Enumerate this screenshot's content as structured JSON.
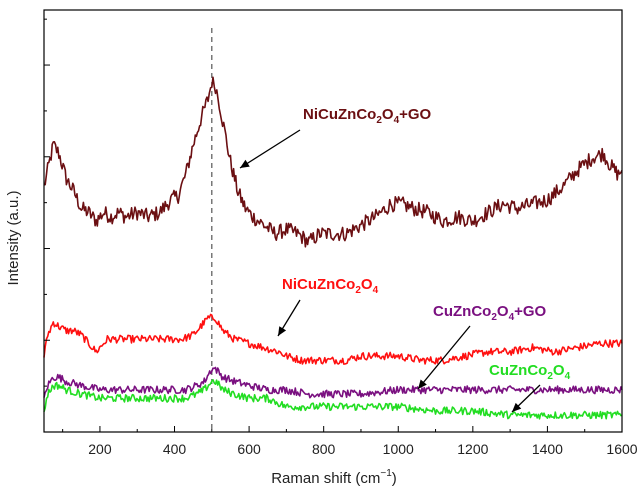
{
  "chart_data": {
    "type": "line",
    "xlabel": "Raman shift (cm",
    "xlabel_sup": "−1",
    "xlabel_end": ")",
    "ylabel": "Intensity (a.u.)",
    "xlim": [
      50,
      1600
    ],
    "ylim": [
      0,
      100
    ],
    "x_ticks": [
      200,
      400,
      600,
      800,
      1000,
      1200,
      1400,
      1600
    ],
    "reference_line_x": 500,
    "series": [
      {
        "name": "NiCuZnCo2O4+GO",
        "label_parts": [
          "NiCuZnCo",
          "2",
          "O",
          "4",
          "+GO"
        ],
        "color": "#6b0f12",
        "x": [
          50,
          60,
          75,
          90,
          110,
          130,
          150,
          170,
          190,
          210,
          230,
          250,
          270,
          300,
          330,
          360,
          390,
          410,
          430,
          450,
          470,
          490,
          500,
          510,
          520,
          535,
          550,
          570,
          590,
          610,
          640,
          670,
          700,
          730,
          760,
          790,
          820,
          860,
          900,
          940,
          980,
          1010,
          1040,
          1080,
          1120,
          1160,
          1200,
          1240,
          1280,
          1320,
          1360,
          1400,
          1440,
          1480,
          1520,
          1550,
          1570,
          1590,
          1600
        ],
        "y": [
          58,
          62,
          68,
          66,
          60,
          57,
          53,
          52,
          50,
          52,
          51,
          52,
          51,
          52,
          51,
          52,
          55,
          56,
          61,
          68,
          74,
          79,
          83,
          82,
          78,
          71,
          64,
          57,
          53,
          51,
          49,
          47,
          48,
          47,
          45,
          47,
          47,
          47,
          49,
          51,
          54,
          54,
          53,
          52,
          50,
          51,
          50,
          52,
          54,
          53,
          54,
          55,
          58,
          62,
          65,
          66,
          63,
          61,
          62
        ]
      },
      {
        "name": "NiCuZnCo2O4",
        "label_parts": [
          "NiCuZnCo",
          "2",
          "O",
          "4",
          ""
        ],
        "color": "#ff1010",
        "x": [
          50,
          60,
          75,
          90,
          110,
          130,
          150,
          170,
          190,
          220,
          260,
          300,
          340,
          380,
          420,
          450,
          470,
          490,
          500,
          510,
          530,
          560,
          600,
          640,
          680,
          700,
          740,
          800,
          860,
          900,
          960,
          1000,
          1060,
          1120,
          1180,
          1240,
          1300,
          1360,
          1420,
          1480,
          1540,
          1580,
          1600
        ],
        "y": [
          18,
          23,
          26,
          25,
          24,
          24,
          23,
          21,
          19,
          22,
          22,
          22,
          22,
          22,
          22,
          23,
          25,
          27,
          27,
          27,
          24,
          22,
          21,
          20,
          19,
          18,
          17,
          17,
          17,
          18,
          18,
          18,
          17,
          17,
          18,
          19,
          19,
          20,
          19,
          20,
          21,
          21,
          21
        ]
      },
      {
        "name": "CuZnCo2O4+GO",
        "label_parts": [
          "CuZnCo",
          "2",
          "O",
          "4",
          "+GO"
        ],
        "color": "#7a1080",
        "x": [
          50,
          60,
          75,
          90,
          110,
          150,
          200,
          260,
          320,
          380,
          430,
          460,
          480,
          500,
          510,
          530,
          560,
          600,
          650,
          700,
          760,
          820,
          900,
          1000,
          1100,
          1200,
          1300,
          1400,
          1500,
          1600
        ],
        "y": [
          8,
          11,
          13,
          13,
          12,
          11,
          10,
          10,
          10,
          10,
          10,
          11,
          12,
          15,
          15,
          13,
          12,
          11,
          10,
          10,
          9,
          9,
          9,
          10,
          10,
          10,
          10,
          10,
          10,
          10
        ]
      },
      {
        "name": "CuZnCo2O4",
        "label_parts": [
          "CuZnCo",
          "2",
          "O",
          "4",
          ""
        ],
        "color": "#22dd22",
        "x": [
          50,
          60,
          75,
          90,
          110,
          150,
          200,
          260,
          320,
          380,
          430,
          460,
          480,
          500,
          510,
          530,
          560,
          600,
          650,
          700,
          760,
          820,
          900,
          1000,
          1100,
          1200,
          1300,
          1400,
          1500,
          1600
        ],
        "y": [
          5,
          9,
          11,
          11,
          10,
          9,
          8,
          8,
          8,
          8,
          8,
          9,
          10,
          12,
          12,
          10,
          9,
          8,
          8,
          6,
          6,
          6,
          6,
          6,
          5,
          5,
          4,
          4,
          4,
          4
        ]
      }
    ]
  }
}
